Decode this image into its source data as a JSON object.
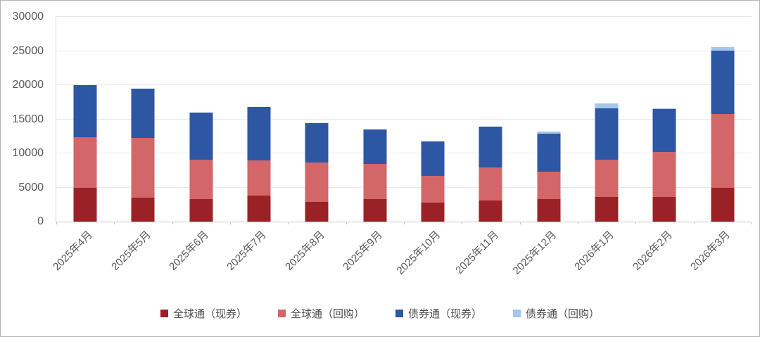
{
  "chart_data": {
    "type": "bar",
    "stacked": true,
    "title": "",
    "categories": [
      "2025年4月",
      "2025年5月",
      "2025年6月",
      "2025年7月",
      "2025年8月",
      "2025年9月",
      "2025年10月",
      "2025年11月",
      "2025年12月",
      "2026年1月",
      "2026年2月",
      "2026年3月"
    ],
    "series": [
      {
        "name": "全球通（现券）",
        "color": "#9a2226",
        "values": [
          4900,
          3500,
          3300,
          3800,
          2900,
          3300,
          2800,
          3100,
          3300,
          3600,
          3600,
          4900
        ]
      },
      {
        "name": "全球通（回购）",
        "color": "#d26668",
        "values": [
          7450,
          8800,
          5800,
          5150,
          5750,
          5200,
          3900,
          4850,
          4000,
          5450,
          6650,
          10900
        ]
      },
      {
        "name": "债券通（现券）",
        "color": "#2d56a3",
        "values": [
          7700,
          7150,
          6900,
          7850,
          5750,
          5000,
          5100,
          5950,
          5600,
          7600,
          6250,
          9300
        ]
      },
      {
        "name": "债券通（回购）",
        "color": "#a3c6ea",
        "values": [
          0,
          0,
          0,
          0,
          0,
          0,
          0,
          0,
          300,
          700,
          150,
          500
        ]
      }
    ],
    "ylim": [
      0,
      30000
    ],
    "yticks": [
      0,
      5000,
      10000,
      15000,
      20000,
      25000,
      30000
    ],
    "grid": true,
    "legend_position": "bottom",
    "axis_label_color": "#595959"
  }
}
